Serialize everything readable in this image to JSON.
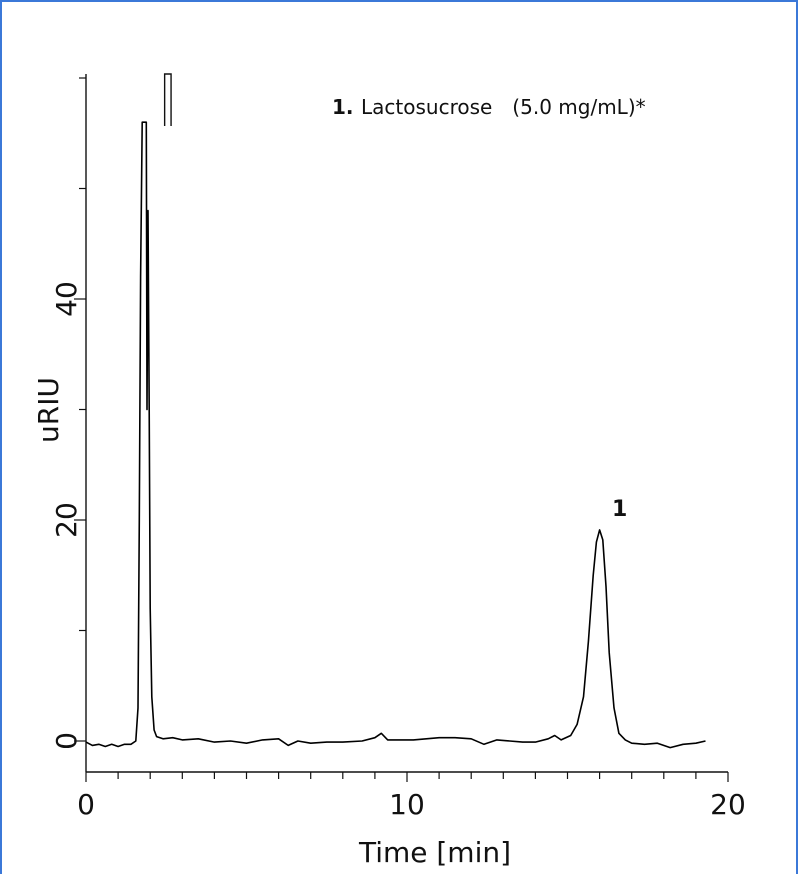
{
  "chart_data": {
    "type": "line",
    "title": "",
    "xlabel": "Time [min]",
    "ylabel": "uRIU",
    "xlim": [
      0,
      20
    ],
    "ylim": [
      -3,
      61
    ],
    "x_ticks": [
      0,
      10,
      20
    ],
    "y_ticks": [
      0,
      20,
      40
    ],
    "x_tick_labels": [
      "0",
      "10",
      "20"
    ],
    "y_tick_labels": [
      "0",
      "20",
      "40"
    ],
    "legend": {
      "number": "1.",
      "text": "Lactosucrose　(5.0 mg/mL)*"
    },
    "peaks": [
      {
        "label": "1",
        "x": 16.0,
        "y": 19.1
      }
    ],
    "series": [
      {
        "color": "#000000",
        "points": [
          [
            0.0,
            -0.1
          ],
          [
            0.2,
            -0.4
          ],
          [
            0.4,
            -0.3
          ],
          [
            0.6,
            -0.5
          ],
          [
            0.8,
            -0.3
          ],
          [
            1.0,
            -0.5
          ],
          [
            1.2,
            -0.3
          ],
          [
            1.4,
            -0.3
          ],
          [
            1.55,
            0.0
          ],
          [
            1.62,
            3.0
          ],
          [
            1.66,
            20.0
          ],
          [
            1.7,
            42.0
          ],
          [
            1.75,
            56.0
          ],
          [
            1.88,
            56.0
          ],
          [
            1.9,
            30.0
          ],
          [
            1.93,
            48.0
          ],
          [
            1.97,
            30.0
          ],
          [
            2.0,
            12.0
          ],
          [
            2.05,
            4.0
          ],
          [
            2.12,
            1.0
          ],
          [
            2.2,
            0.4
          ],
          [
            2.4,
            0.2
          ],
          [
            2.7,
            0.3
          ],
          [
            3.0,
            0.1
          ],
          [
            3.5,
            0.2
          ],
          [
            4.0,
            -0.1
          ],
          [
            4.5,
            0.0
          ],
          [
            5.0,
            -0.2
          ],
          [
            5.5,
            0.1
          ],
          [
            6.0,
            0.2
          ],
          [
            6.3,
            -0.4
          ],
          [
            6.6,
            0.0
          ],
          [
            7.0,
            -0.2
          ],
          [
            7.5,
            -0.1
          ],
          [
            8.0,
            -0.1
          ],
          [
            8.6,
            0.0
          ],
          [
            9.0,
            0.3
          ],
          [
            9.2,
            0.7
          ],
          [
            9.4,
            0.1
          ],
          [
            9.8,
            0.1
          ],
          [
            10.2,
            0.1
          ],
          [
            10.6,
            0.2
          ],
          [
            11.0,
            0.3
          ],
          [
            11.5,
            0.3
          ],
          [
            12.0,
            0.2
          ],
          [
            12.4,
            -0.3
          ],
          [
            12.8,
            0.1
          ],
          [
            13.2,
            0.0
          ],
          [
            13.6,
            -0.1
          ],
          [
            14.0,
            -0.1
          ],
          [
            14.4,
            0.2
          ],
          [
            14.6,
            0.5
          ],
          [
            14.8,
            0.1
          ],
          [
            15.1,
            0.5
          ],
          [
            15.3,
            1.5
          ],
          [
            15.5,
            4.0
          ],
          [
            15.65,
            9.0
          ],
          [
            15.8,
            15.0
          ],
          [
            15.9,
            18.0
          ],
          [
            16.0,
            19.1
          ],
          [
            16.1,
            18.2
          ],
          [
            16.2,
            14.0
          ],
          [
            16.3,
            8.0
          ],
          [
            16.45,
            3.0
          ],
          [
            16.6,
            0.7
          ],
          [
            16.8,
            0.1
          ],
          [
            17.0,
            -0.2
          ],
          [
            17.4,
            -0.3
          ],
          [
            17.8,
            -0.2
          ],
          [
            18.2,
            -0.6
          ],
          [
            18.6,
            -0.3
          ],
          [
            19.0,
            -0.2
          ],
          [
            19.3,
            0.0
          ]
        ]
      }
    ],
    "overflow_marker": {
      "x": [
        2.45,
        2.65
      ]
    }
  }
}
